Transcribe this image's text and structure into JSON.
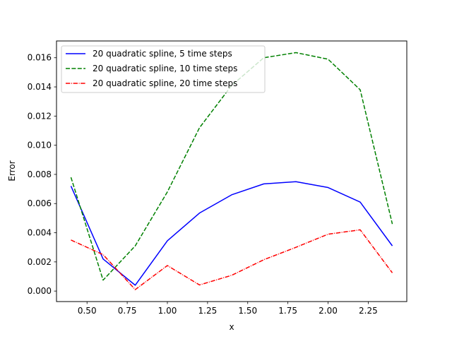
{
  "chart_data": {
    "type": "line",
    "xlabel": "x",
    "ylabel": "Error",
    "xlim": [
      0.31,
      2.49
    ],
    "ylim": [
      -0.00072,
      0.01715
    ],
    "xticks": [
      0.5,
      0.75,
      1.0,
      1.25,
      1.5,
      1.75,
      2.0,
      2.25
    ],
    "xtick_labels": [
      "0.50",
      "0.75",
      "1.00",
      "1.25",
      "1.50",
      "1.75",
      "2.00",
      "2.25"
    ],
    "yticks": [
      0.0,
      0.002,
      0.004,
      0.006,
      0.008,
      0.01,
      0.012,
      0.014,
      0.016
    ],
    "ytick_labels": [
      "0.000",
      "0.002",
      "0.004",
      "0.006",
      "0.008",
      "0.010",
      "0.012",
      "0.014",
      "0.016"
    ],
    "grid": false,
    "legend_position": "top-left",
    "x": [
      0.4,
      0.6,
      0.8,
      1.0,
      1.2,
      1.4,
      1.6,
      1.8,
      2.0,
      2.2,
      2.4
    ],
    "series": [
      {
        "name": "20 quadratic spline, 5 time steps",
        "color": "#0000ff",
        "dash": "solid",
        "values": [
          0.0072,
          0.0022,
          0.0004,
          0.00345,
          0.00535,
          0.0066,
          0.00735,
          0.0075,
          0.0071,
          0.0061,
          0.0031
        ]
      },
      {
        "name": "20 quadratic spline, 10 time steps",
        "color": "#008000",
        "dash": "dashed",
        "values": [
          0.0078,
          0.00075,
          0.0031,
          0.0068,
          0.0112,
          0.0141,
          0.016,
          0.01635,
          0.0159,
          0.0138,
          0.0046
        ]
      },
      {
        "name": "20 quadratic spline, 20 time steps",
        "color": "#ff0000",
        "dash": "dashdot",
        "values": [
          0.0035,
          0.0025,
          0.0001,
          0.00175,
          0.00042,
          0.00108,
          0.00215,
          0.003,
          0.0039,
          0.0042,
          0.00125
        ]
      }
    ]
  }
}
